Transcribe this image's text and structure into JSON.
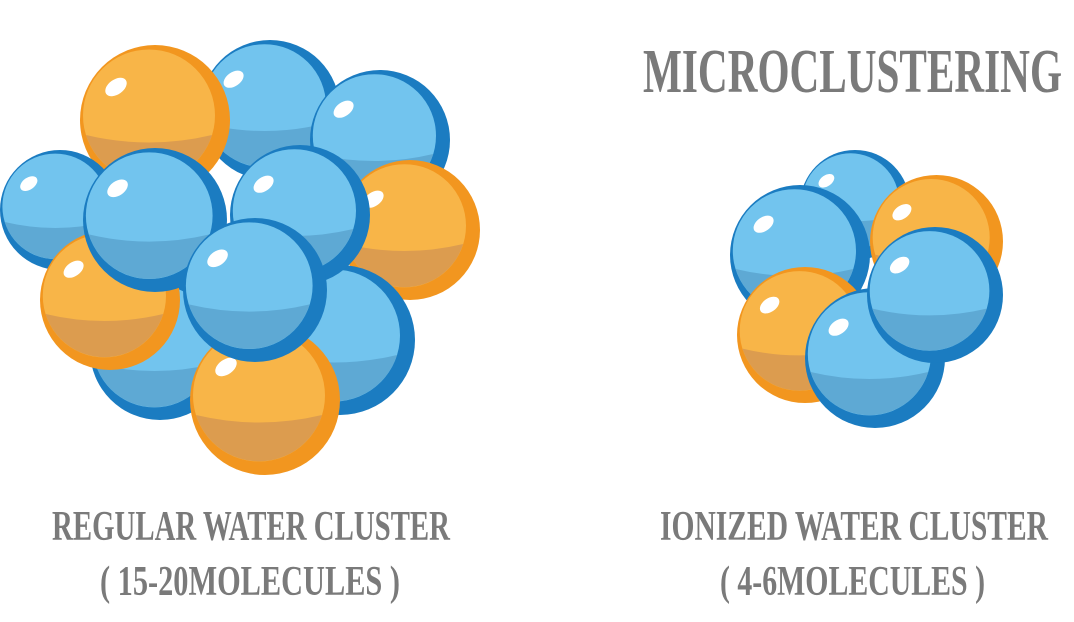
{
  "title": "MICROCLUSTERING",
  "clusters": [
    {
      "name": "REGULAR WATER CLUSTER",
      "detail": "( 15-20MOLECULES )"
    },
    {
      "name": "IONIZED WATER CLUSTER",
      "detail": "( 4-6MOLECULES )"
    }
  ]
}
